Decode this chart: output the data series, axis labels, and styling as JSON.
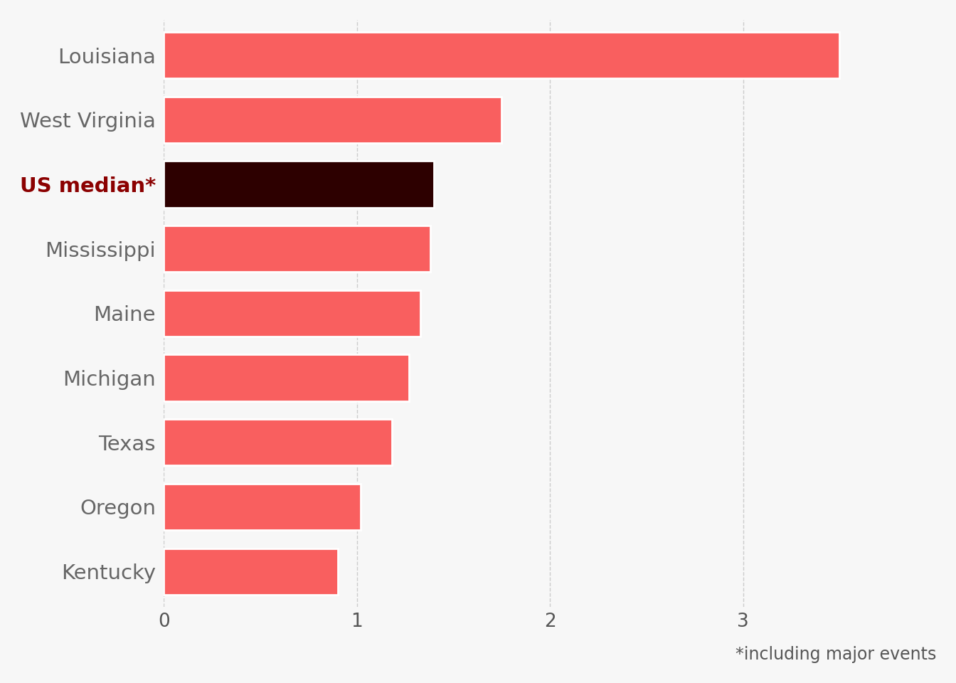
{
  "categories": [
    "Louisiana",
    "West Virginia",
    "US median*",
    "Mississippi",
    "Maine",
    "Michigan",
    "Texas",
    "Oregon",
    "Kentucky"
  ],
  "values": [
    3.5,
    1.75,
    1.4,
    1.38,
    1.33,
    1.27,
    1.18,
    1.02,
    0.9
  ],
  "bar_colors": [
    "#f95f5f",
    "#f95f5f",
    "#2d0000",
    "#f95f5f",
    "#f95f5f",
    "#f95f5f",
    "#f95f5f",
    "#f95f5f",
    "#f95f5f"
  ],
  "label_colors": [
    "#666666",
    "#666666",
    "#8b0000",
    "#666666",
    "#666666",
    "#666666",
    "#666666",
    "#666666",
    "#666666"
  ],
  "label_fontweights": [
    "normal",
    "normal",
    "bold",
    "normal",
    "normal",
    "normal",
    "normal",
    "normal",
    "normal"
  ],
  "xlabel": "*including major events",
  "xlim": [
    0,
    4.0
  ],
  "xticks": [
    0,
    1,
    2,
    3
  ],
  "background_color": "#f7f7f7",
  "grid_color": "#cccccc",
  "annotation_fontsize": 17,
  "tick_fontsize": 19,
  "label_fontsize": 21
}
